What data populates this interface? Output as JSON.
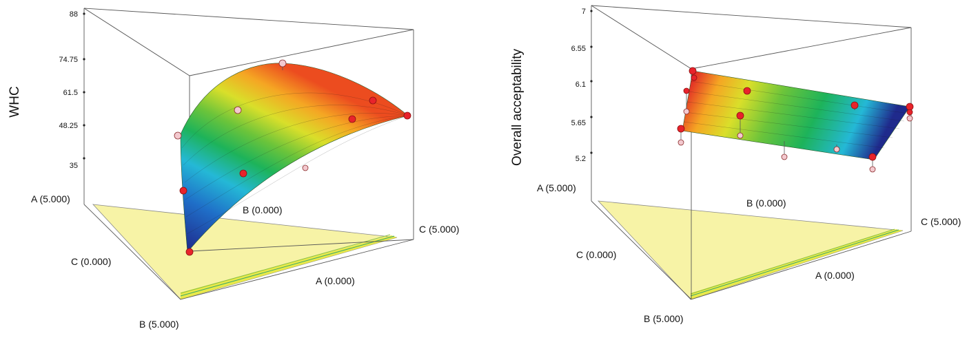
{
  "colors": {
    "base_triangle": "#f7f3a6",
    "base_contour": "#c9d84a",
    "frame": "#555555",
    "design_point_above": "#e8232b",
    "design_point_below": "#f3c9cf",
    "surface_scale": [
      "#1f2a8c",
      "#1f6fc8",
      "#24b8d6",
      "#1db35a",
      "#6cc43a",
      "#d9df2a",
      "#f5a623",
      "#ec4c1f",
      "#e01f26"
    ]
  },
  "chart_data": [
    {
      "type": "surface3d-mixture",
      "ylabel": "WHC",
      "yticks": [
        "88",
        "74.75",
        "61.5",
        "48.25",
        "35"
      ],
      "ylim": [
        35,
        88
      ],
      "corners": [
        {
          "label": "A (5.000)"
        },
        {
          "label": "B (0.000)"
        },
        {
          "label": "C (5.000)"
        },
        {
          "label": "C (0.000)"
        },
        {
          "label": "A (0.000)"
        },
        {
          "label": "B (5.000)"
        }
      ],
      "surface_edges": {
        "A_vertex_range": [
          72,
          28
        ],
        "A_to_C_edge_values": [
          72,
          84.8,
          87.5,
          82.2,
          69.3,
          67
        ],
        "C_vertex": 67
      }
    },
    {
      "type": "surface3d-mixture",
      "ylabel": "Overall acceptability",
      "yticks": [
        "7",
        "6.55",
        "6.1",
        "5.65",
        "5.2"
      ],
      "ylim": [
        5.2,
        7
      ],
      "corners": [
        {
          "label": "A (5.000)"
        },
        {
          "label": "B (0.000)"
        },
        {
          "label": "C (5.000)"
        },
        {
          "label": "C (0.000)"
        },
        {
          "label": "A (0.000)"
        },
        {
          "label": "B (5.000)"
        }
      ],
      "surface_edges": {
        "A_vertex_range": [
          6.3,
          5.95
        ],
        "C_vertex_range": [
          5.96,
          5.25
        ]
      }
    }
  ]
}
